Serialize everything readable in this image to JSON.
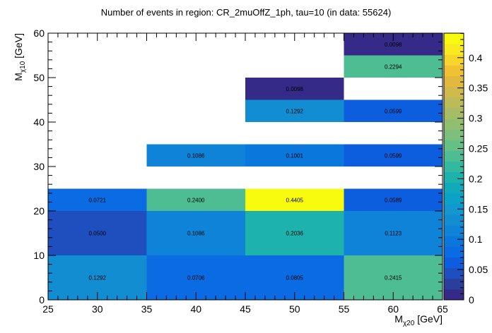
{
  "chart_data": {
    "type": "heatmap",
    "title": "Number of events in region: CR_2muOffZ_1ph, tau=10 (in data: 55624)",
    "xlabel": "M",
    "xlabel_sub": "χ20",
    "xlabel_unit": " [GeV]",
    "ylabel": "M",
    "ylabel_sub": "χ10",
    "ylabel_unit": " [GeV]",
    "xlim": [
      25,
      65
    ],
    "ylim": [
      0,
      60
    ],
    "xticks": [
      "25",
      "30",
      "35",
      "40",
      "45",
      "50",
      "55",
      "60",
      "65"
    ],
    "yticks": [
      "0",
      "10",
      "20",
      "30",
      "40",
      "50",
      "60"
    ],
    "zlim": [
      0,
      0.4405
    ],
    "zticks": [
      "0",
      "0.05",
      "0.1",
      "0.15",
      "0.2",
      "0.25",
      "0.3",
      "0.35",
      "0.4"
    ],
    "cells": [
      {
        "x0": 25,
        "x1": 35,
        "y0": 0,
        "y1": 10,
        "value": 0.1292,
        "label": "0.1292"
      },
      {
        "x0": 35,
        "x1": 45,
        "y0": 0,
        "y1": 10,
        "value": 0.0706,
        "label": "0.0706"
      },
      {
        "x0": 45,
        "x1": 55,
        "y0": 0,
        "y1": 10,
        "value": 0.0805,
        "label": "0.0805"
      },
      {
        "x0": 55,
        "x1": 65,
        "y0": 0,
        "y1": 10,
        "value": 0.2415,
        "label": "0.2415"
      },
      {
        "x0": 25,
        "x1": 35,
        "y0": 10,
        "y1": 20,
        "value": 0.05,
        "label": "0.0500"
      },
      {
        "x0": 35,
        "x1": 45,
        "y0": 10,
        "y1": 20,
        "value": 0.1086,
        "label": "0.1086"
      },
      {
        "x0": 45,
        "x1": 55,
        "y0": 10,
        "y1": 20,
        "value": 0.2036,
        "label": "0.2036"
      },
      {
        "x0": 55,
        "x1": 65,
        "y0": 10,
        "y1": 20,
        "value": 0.1123,
        "label": "0.1123"
      },
      {
        "x0": 25,
        "x1": 35,
        "y0": 20,
        "y1": 25,
        "value": 0.0721,
        "label": "0.0721"
      },
      {
        "x0": 35,
        "x1": 45,
        "y0": 20,
        "y1": 25,
        "value": 0.24,
        "label": "0.2400"
      },
      {
        "x0": 45,
        "x1": 55,
        "y0": 20,
        "y1": 25,
        "value": 0.4405,
        "label": "0.4405"
      },
      {
        "x0": 55,
        "x1": 65,
        "y0": 20,
        "y1": 25,
        "value": 0.0589,
        "label": "0.0589"
      },
      {
        "x0": 35,
        "x1": 45,
        "y0": 30,
        "y1": 35,
        "value": 0.1086,
        "label": "0.1086"
      },
      {
        "x0": 45,
        "x1": 55,
        "y0": 30,
        "y1": 35,
        "value": 0.1001,
        "label": "0.1001"
      },
      {
        "x0": 55,
        "x1": 65,
        "y0": 30,
        "y1": 35,
        "value": 0.0599,
        "label": "0.0599"
      },
      {
        "x0": 45,
        "x1": 55,
        "y0": 40,
        "y1": 45,
        "value": 0.1292,
        "label": "0.1292"
      },
      {
        "x0": 55,
        "x1": 65,
        "y0": 40,
        "y1": 45,
        "value": 0.0599,
        "label": "0.0599"
      },
      {
        "x0": 45,
        "x1": 55,
        "y0": 45,
        "y1": 50,
        "value": 0.0098,
        "label": "0.0098"
      },
      {
        "x0": 55,
        "x1": 65,
        "y0": 50,
        "y1": 55,
        "value": 0.2294,
        "label": "0.2294"
      },
      {
        "x0": 55,
        "x1": 65,
        "y0": 55,
        "y1": 60,
        "value": 0.0098,
        "label": "0.0098"
      }
    ],
    "palette": [
      "#352a87",
      "#2b3e9c",
      "#1f4fbf",
      "#0d5ede",
      "#0b6be2",
      "#0a77dc",
      "#0f83d8",
      "#128dd2",
      "#1198ce",
      "#0ca2c6",
      "#11aabb",
      "#1eb2ad",
      "#34b89f",
      "#4ebd93",
      "#65c086",
      "#7cc07b",
      "#92bf6f",
      "#a6bd65",
      "#bcbb5a",
      "#cfba4b",
      "#e1b93f",
      "#f0c233",
      "#f8d52b",
      "#faea20",
      "#f9fb0e"
    ]
  }
}
